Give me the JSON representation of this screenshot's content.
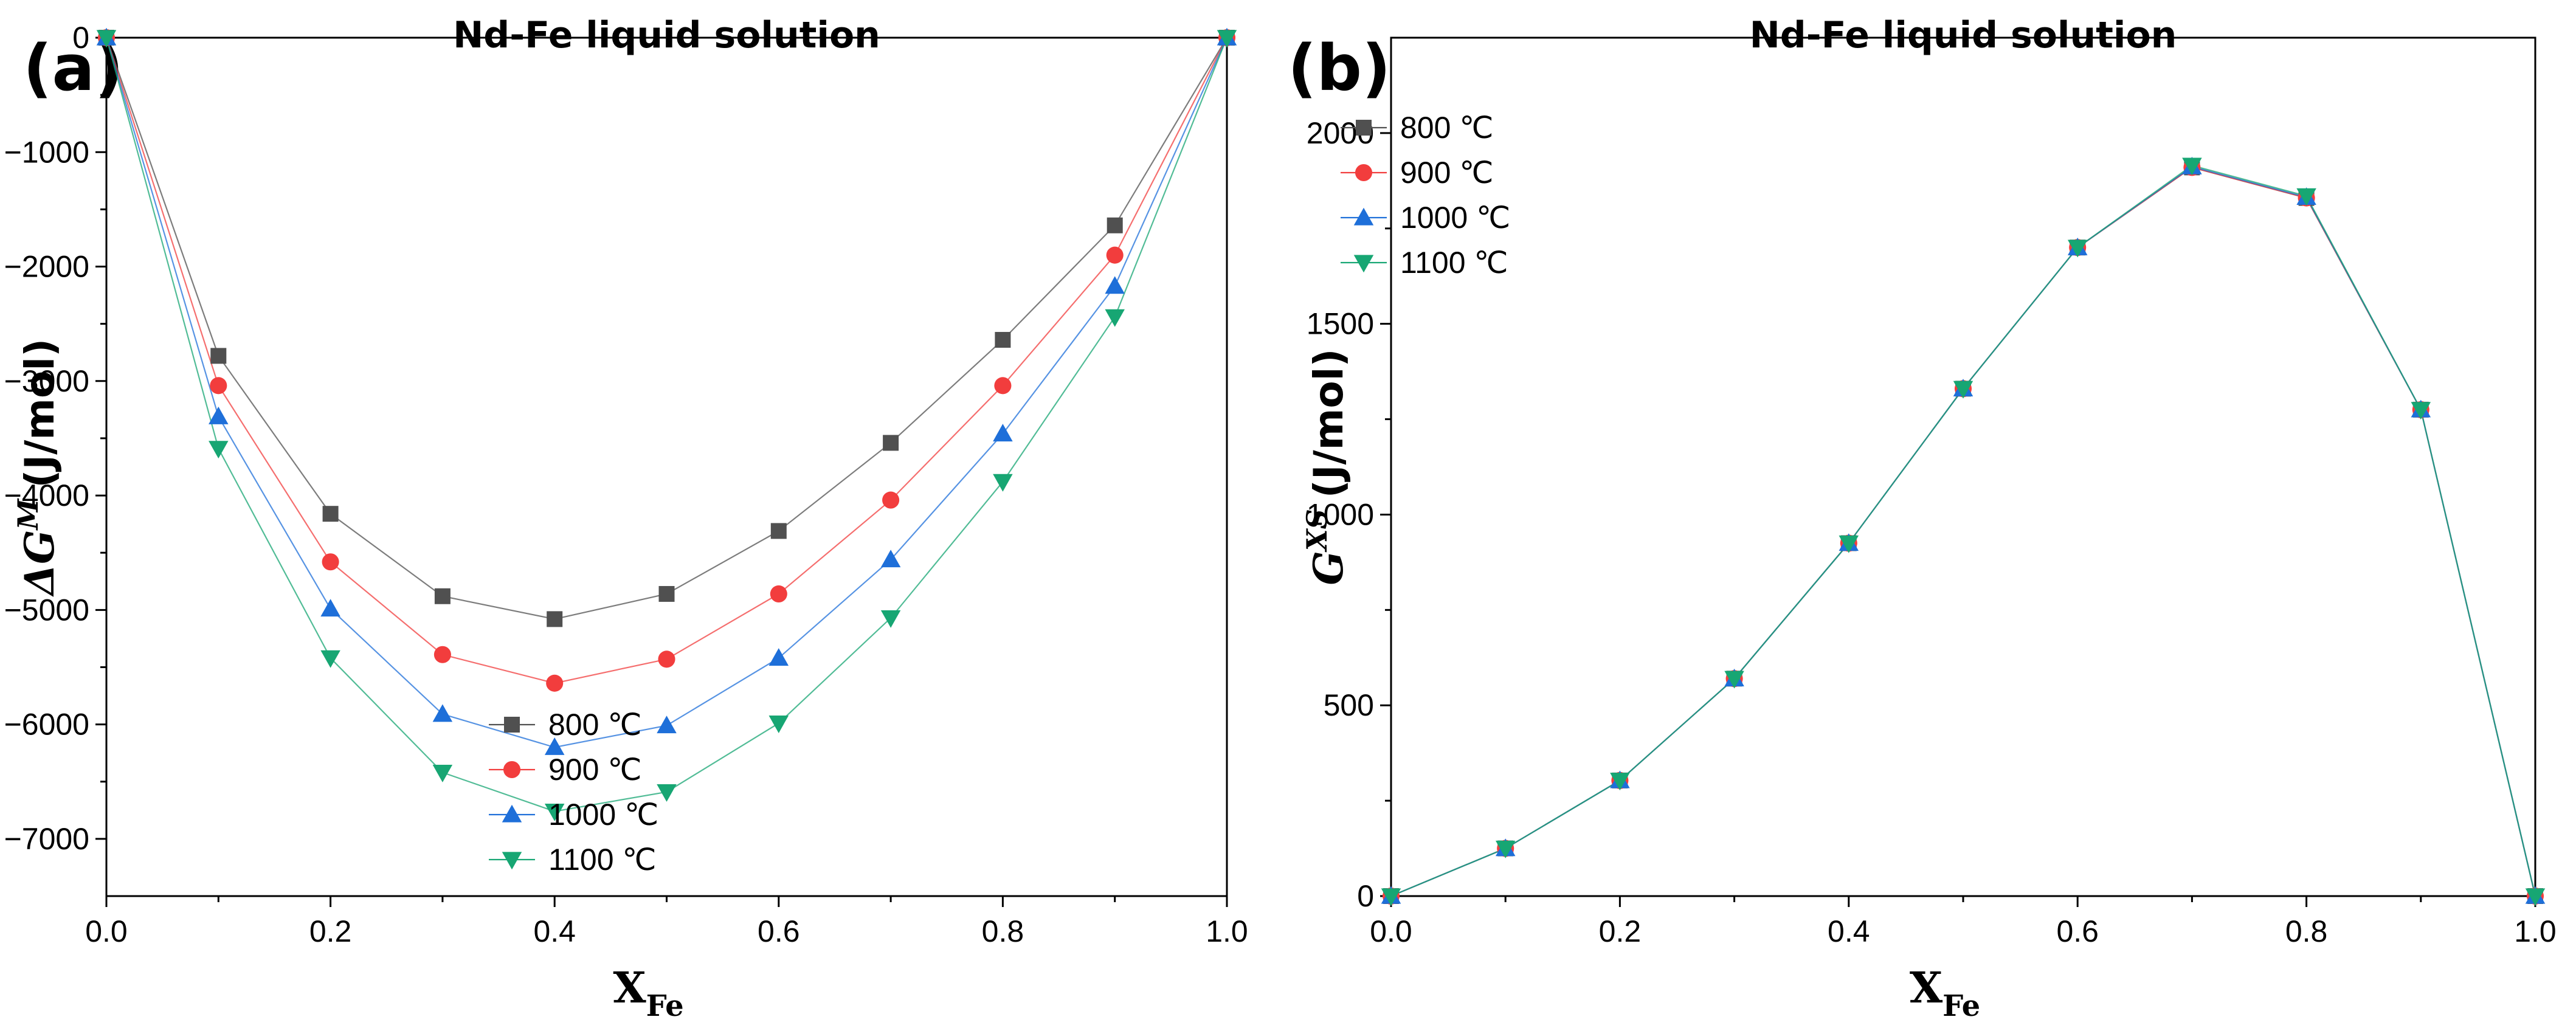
{
  "chart_data": [
    {
      "type": "line",
      "panel": "(a)",
      "title": "Nd-Fe liquid solution",
      "xlabel": {
        "main": "X",
        "sub": "Fe"
      },
      "ylabel": {
        "prefix": "ΔG",
        "sup": "M",
        "units": "(J/mol)"
      },
      "xlim": [
        0,
        1.0
      ],
      "ylim": [
        -7500,
        0
      ],
      "xticks": [
        0,
        0.2,
        0.4,
        0.6,
        0.8,
        1.0
      ],
      "xtick_labels": [
        "0.0",
        "0.2",
        "0.4",
        "0.6",
        "0.8",
        "1.0"
      ],
      "yticks": [
        0,
        -1000,
        -2000,
        -3000,
        -4000,
        -5000,
        -6000,
        -7000
      ],
      "ytick_labels": [
        "0",
        "−1000",
        "−2000",
        "−3000",
        "−4000",
        "−5000",
        "−6000",
        "−7000"
      ],
      "legend_position": "bottom-right",
      "x": [
        0,
        0.1,
        0.2,
        0.3,
        0.4,
        0.5,
        0.6,
        0.7,
        0.8,
        0.9,
        1.0
      ],
      "series": [
        {
          "name": "800 ℃",
          "marker": "square",
          "color": "#505050",
          "values": [
            0,
            -2780,
            -4160,
            -4880,
            -5080,
            -4860,
            -4310,
            -3540,
            -2640,
            -1640,
            0
          ]
        },
        {
          "name": "900 ℃",
          "marker": "circle",
          "color": "#f23d3d",
          "values": [
            0,
            -3040,
            -4580,
            -5390,
            -5640,
            -5430,
            -4860,
            -4040,
            -3040,
            -1900,
            0
          ]
        },
        {
          "name": "1000 ℃",
          "marker": "triangle-up",
          "color": "#1e6fd9",
          "values": [
            0,
            -3310,
            -4990,
            -5910,
            -6200,
            -6010,
            -5420,
            -4560,
            -3460,
            -2170,
            0
          ]
        },
        {
          "name": "1100 ℃",
          "marker": "triangle-down",
          "color": "#17a673",
          "values": [
            0,
            -3590,
            -5420,
            -6420,
            -6760,
            -6590,
            -5990,
            -5070,
            -3880,
            -2440,
            0
          ]
        }
      ]
    },
    {
      "type": "line",
      "panel": "(b)",
      "title": "Nd-Fe liquid solution",
      "xlabel": {
        "main": "X",
        "sub": "Fe"
      },
      "ylabel": {
        "prefix": "G",
        "sup": "XS",
        "units": "(J/mol)"
      },
      "xlim": [
        0,
        1.0
      ],
      "ylim": [
        0,
        2250
      ],
      "xticks": [
        0,
        0.2,
        0.4,
        0.6,
        0.8,
        1.0
      ],
      "xtick_labels": [
        "0.0",
        "0.2",
        "0.4",
        "0.6",
        "0.8",
        "1.0"
      ],
      "yticks": [
        0,
        500,
        1000,
        1500,
        2000
      ],
      "ytick_labels": [
        "0",
        "500",
        "1000",
        "1500",
        "2000"
      ],
      "legend_position": "top-left",
      "x": [
        0,
        0.1,
        0.2,
        0.3,
        0.4,
        0.5,
        0.6,
        0.7,
        0.8,
        0.9,
        1.0
      ],
      "series": [
        {
          "name": "800 ℃",
          "marker": "square",
          "color": "#505050",
          "values": [
            0,
            125,
            303,
            570,
            925,
            1330,
            1700,
            1910,
            1830,
            1275,
            0
          ]
        },
        {
          "name": "900 ℃",
          "marker": "circle",
          "color": "#f23d3d",
          "values": [
            0,
            125,
            303,
            570,
            925,
            1330,
            1700,
            1910,
            1830,
            1275,
            0
          ]
        },
        {
          "name": "1000 ℃",
          "marker": "triangle-up",
          "color": "#1e6fd9",
          "values": [
            0,
            125,
            303,
            570,
            925,
            1330,
            1700,
            1912,
            1832,
            1275,
            0
          ]
        },
        {
          "name": "1100 ℃",
          "marker": "triangle-down",
          "color": "#17a673",
          "values": [
            0,
            125,
            303,
            570,
            925,
            1330,
            1700,
            1915,
            1835,
            1275,
            0
          ]
        }
      ]
    }
  ]
}
